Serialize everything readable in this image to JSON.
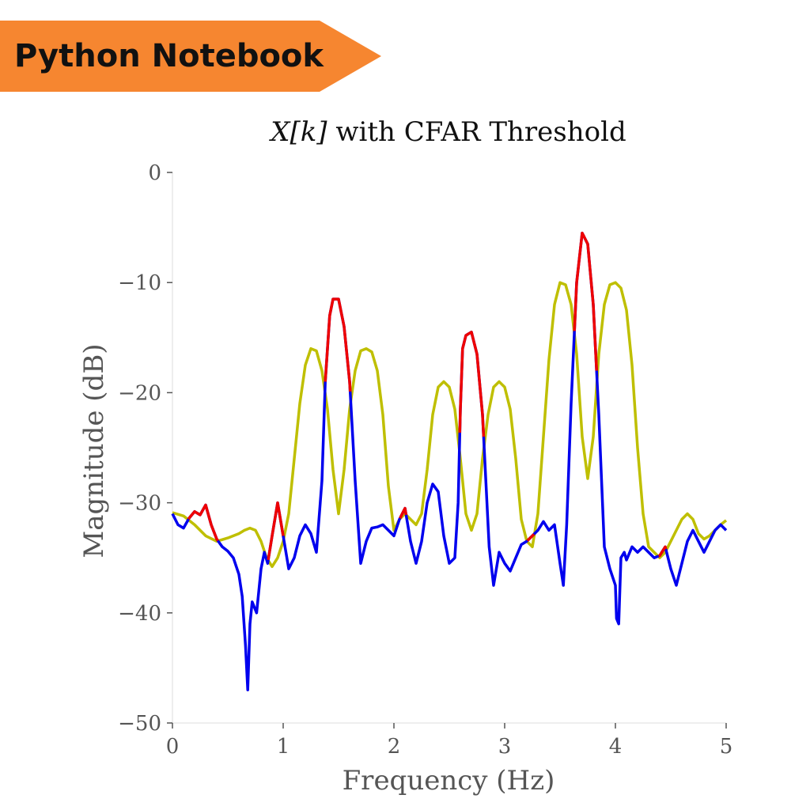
{
  "banner": {
    "label": "Python Notebook",
    "color": "#F68630"
  },
  "chart_data": {
    "type": "line",
    "title_parts": [
      "X[k]",
      " with CFAR Threshold"
    ],
    "xlabel": "Frequency (Hz)",
    "ylabel": "Magnitude (dB)",
    "xlim": [
      0,
      5
    ],
    "ylim": [
      -50,
      0
    ],
    "xticks": [
      "0",
      "1",
      "2",
      "3",
      "4",
      "5"
    ],
    "yticks": [
      "0",
      "−10",
      "−20",
      "−30",
      "−40",
      "−50"
    ],
    "grid": false,
    "legend": "none",
    "colors": {
      "signal": "#0000EE",
      "threshold": "#BFBF00",
      "detection": "#EE0000",
      "axis_text": "#555555"
    },
    "series": [
      {
        "role": "signal",
        "x": [
          0,
          0.05,
          0.1,
          0.15,
          0.2,
          0.25,
          0.3,
          0.35,
          0.4,
          0.45,
          0.5,
          0.55,
          0.6,
          0.63,
          0.66,
          0.68,
          0.7,
          0.72,
          0.74,
          0.76,
          0.78,
          0.8,
          0.83,
          0.86,
          0.9,
          0.95,
          1.0,
          1.05,
          1.1,
          1.15,
          1.2,
          1.25,
          1.3,
          1.35,
          1.38,
          1.42,
          1.45,
          1.5,
          1.55,
          1.6,
          1.65,
          1.7,
          1.75,
          1.8,
          1.85,
          1.9,
          1.95,
          2.0,
          2.05,
          2.1,
          2.15,
          2.2,
          2.25,
          2.3,
          2.35,
          2.4,
          2.45,
          2.5,
          2.55,
          2.58,
          2.6,
          2.62,
          2.65,
          2.7,
          2.75,
          2.8,
          2.83,
          2.86,
          2.9,
          2.95,
          3.0,
          3.05,
          3.1,
          3.15,
          3.2,
          3.25,
          3.3,
          3.35,
          3.4,
          3.45,
          3.5,
          3.53,
          3.56,
          3.6,
          3.65,
          3.7,
          3.75,
          3.8,
          3.85,
          3.9,
          3.95,
          4.0,
          4.01,
          4.03,
          4.05,
          4.08,
          4.1,
          4.15,
          4.2,
          4.25,
          4.3,
          4.35,
          4.4,
          4.45,
          4.5,
          4.55,
          4.6,
          4.65,
          4.7,
          4.75,
          4.8,
          4.85,
          4.9,
          4.95,
          5.0
        ],
        "y": [
          -31,
          -32,
          -32.3,
          -31.4,
          -30.8,
          -31.1,
          -30.2,
          -32.0,
          -33.3,
          -34.0,
          -34.4,
          -35.0,
          -36.5,
          -38.5,
          -43.0,
          -47.0,
          -41.0,
          -39.0,
          -39.5,
          -40.0,
          -38.0,
          -36.0,
          -34.5,
          -35.5,
          -33.0,
          -30.0,
          -33.0,
          -36.0,
          -35.0,
          -33.0,
          -32.0,
          -32.8,
          -34.5,
          -28.0,
          -19.0,
          -13.0,
          -11.5,
          -11.5,
          -14.0,
          -19.0,
          -28.0,
          -35.5,
          -33.5,
          -32.3,
          -32.2,
          -32.0,
          -32.5,
          -33.0,
          -31.5,
          -30.5,
          -33.5,
          -35.5,
          -33.5,
          -30.0,
          -28.3,
          -29.0,
          -33.0,
          -35.5,
          -35.0,
          -30.0,
          -21.5,
          -16.0,
          -14.8,
          -14.5,
          -16.5,
          -22.0,
          -28.0,
          -34.0,
          -37.5,
          -34.5,
          -35.5,
          -36.2,
          -35.0,
          -33.8,
          -33.5,
          -33.0,
          -32.5,
          -31.7,
          -32.5,
          -32.0,
          -35.5,
          -37.5,
          -32.0,
          -21.0,
          -10.0,
          -5.5,
          -6.5,
          -12.0,
          -22.0,
          -34.0,
          -36.0,
          -37.5,
          -40.5,
          -41.0,
          -35.0,
          -34.5,
          -35.2,
          -34.0,
          -34.5,
          -34.0,
          -34.5,
          -35.0,
          -34.8,
          -34.0,
          -36.0,
          -37.5,
          -35.5,
          -33.5,
          -32.5,
          -33.5,
          -34.5,
          -33.5,
          -32.5,
          -32.0,
          -32.5
        ]
      },
      {
        "role": "threshold",
        "x": [
          0,
          0.1,
          0.2,
          0.3,
          0.4,
          0.5,
          0.55,
          0.6,
          0.65,
          0.7,
          0.75,
          0.8,
          0.85,
          0.9,
          0.95,
          1.0,
          1.05,
          1.1,
          1.15,
          1.2,
          1.25,
          1.3,
          1.35,
          1.4,
          1.45,
          1.5,
          1.55,
          1.6,
          1.65,
          1.7,
          1.75,
          1.8,
          1.85,
          1.9,
          1.95,
          2.0,
          2.05,
          2.1,
          2.15,
          2.2,
          2.25,
          2.3,
          2.35,
          2.4,
          2.45,
          2.5,
          2.55,
          2.6,
          2.65,
          2.7,
          2.75,
          2.8,
          2.85,
          2.9,
          2.95,
          3.0,
          3.05,
          3.1,
          3.15,
          3.2,
          3.25,
          3.3,
          3.35,
          3.4,
          3.45,
          3.5,
          3.55,
          3.6,
          3.65,
          3.7,
          3.75,
          3.8,
          3.85,
          3.9,
          3.95,
          4.0,
          4.05,
          4.1,
          4.15,
          4.2,
          4.25,
          4.3,
          4.35,
          4.4,
          4.45,
          4.5,
          4.55,
          4.6,
          4.65,
          4.7,
          4.75,
          4.8,
          4.85,
          4.9,
          4.95,
          5.0
        ],
        "y": [
          -30.9,
          -31.2,
          -32.0,
          -33.0,
          -33.5,
          -33.2,
          -33.0,
          -32.8,
          -32.5,
          -32.3,
          -32.5,
          -33.5,
          -35.0,
          -35.8,
          -35.0,
          -33.5,
          -31.0,
          -26.0,
          -21.0,
          -17.5,
          -16.0,
          -16.2,
          -18.0,
          -21.5,
          -27.0,
          -31.0,
          -27.0,
          -21.5,
          -18.0,
          -16.2,
          -16.0,
          -16.3,
          -18.0,
          -22.0,
          -28.5,
          -32.5,
          -31.5,
          -31.0,
          -31.5,
          -32.0,
          -31.0,
          -27.0,
          -22.0,
          -19.5,
          -19.0,
          -19.5,
          -21.5,
          -26.0,
          -31.0,
          -32.5,
          -31.0,
          -26.0,
          -22.0,
          -19.5,
          -19.0,
          -19.5,
          -21.5,
          -26.0,
          -31.5,
          -33.5,
          -34.0,
          -31.0,
          -24.0,
          -17.0,
          -12.0,
          -10.0,
          -10.2,
          -12.0,
          -16.5,
          -24.0,
          -27.8,
          -24.0,
          -16.5,
          -12.0,
          -10.2,
          -10.0,
          -10.5,
          -12.5,
          -17.5,
          -25.0,
          -31.0,
          -34.0,
          -34.5,
          -35.0,
          -34.5,
          -33.5,
          -32.5,
          -31.5,
          -31.0,
          -31.5,
          -32.8,
          -33.3,
          -33.0,
          -32.5,
          -32.0,
          -31.6
        ]
      }
    ]
  }
}
